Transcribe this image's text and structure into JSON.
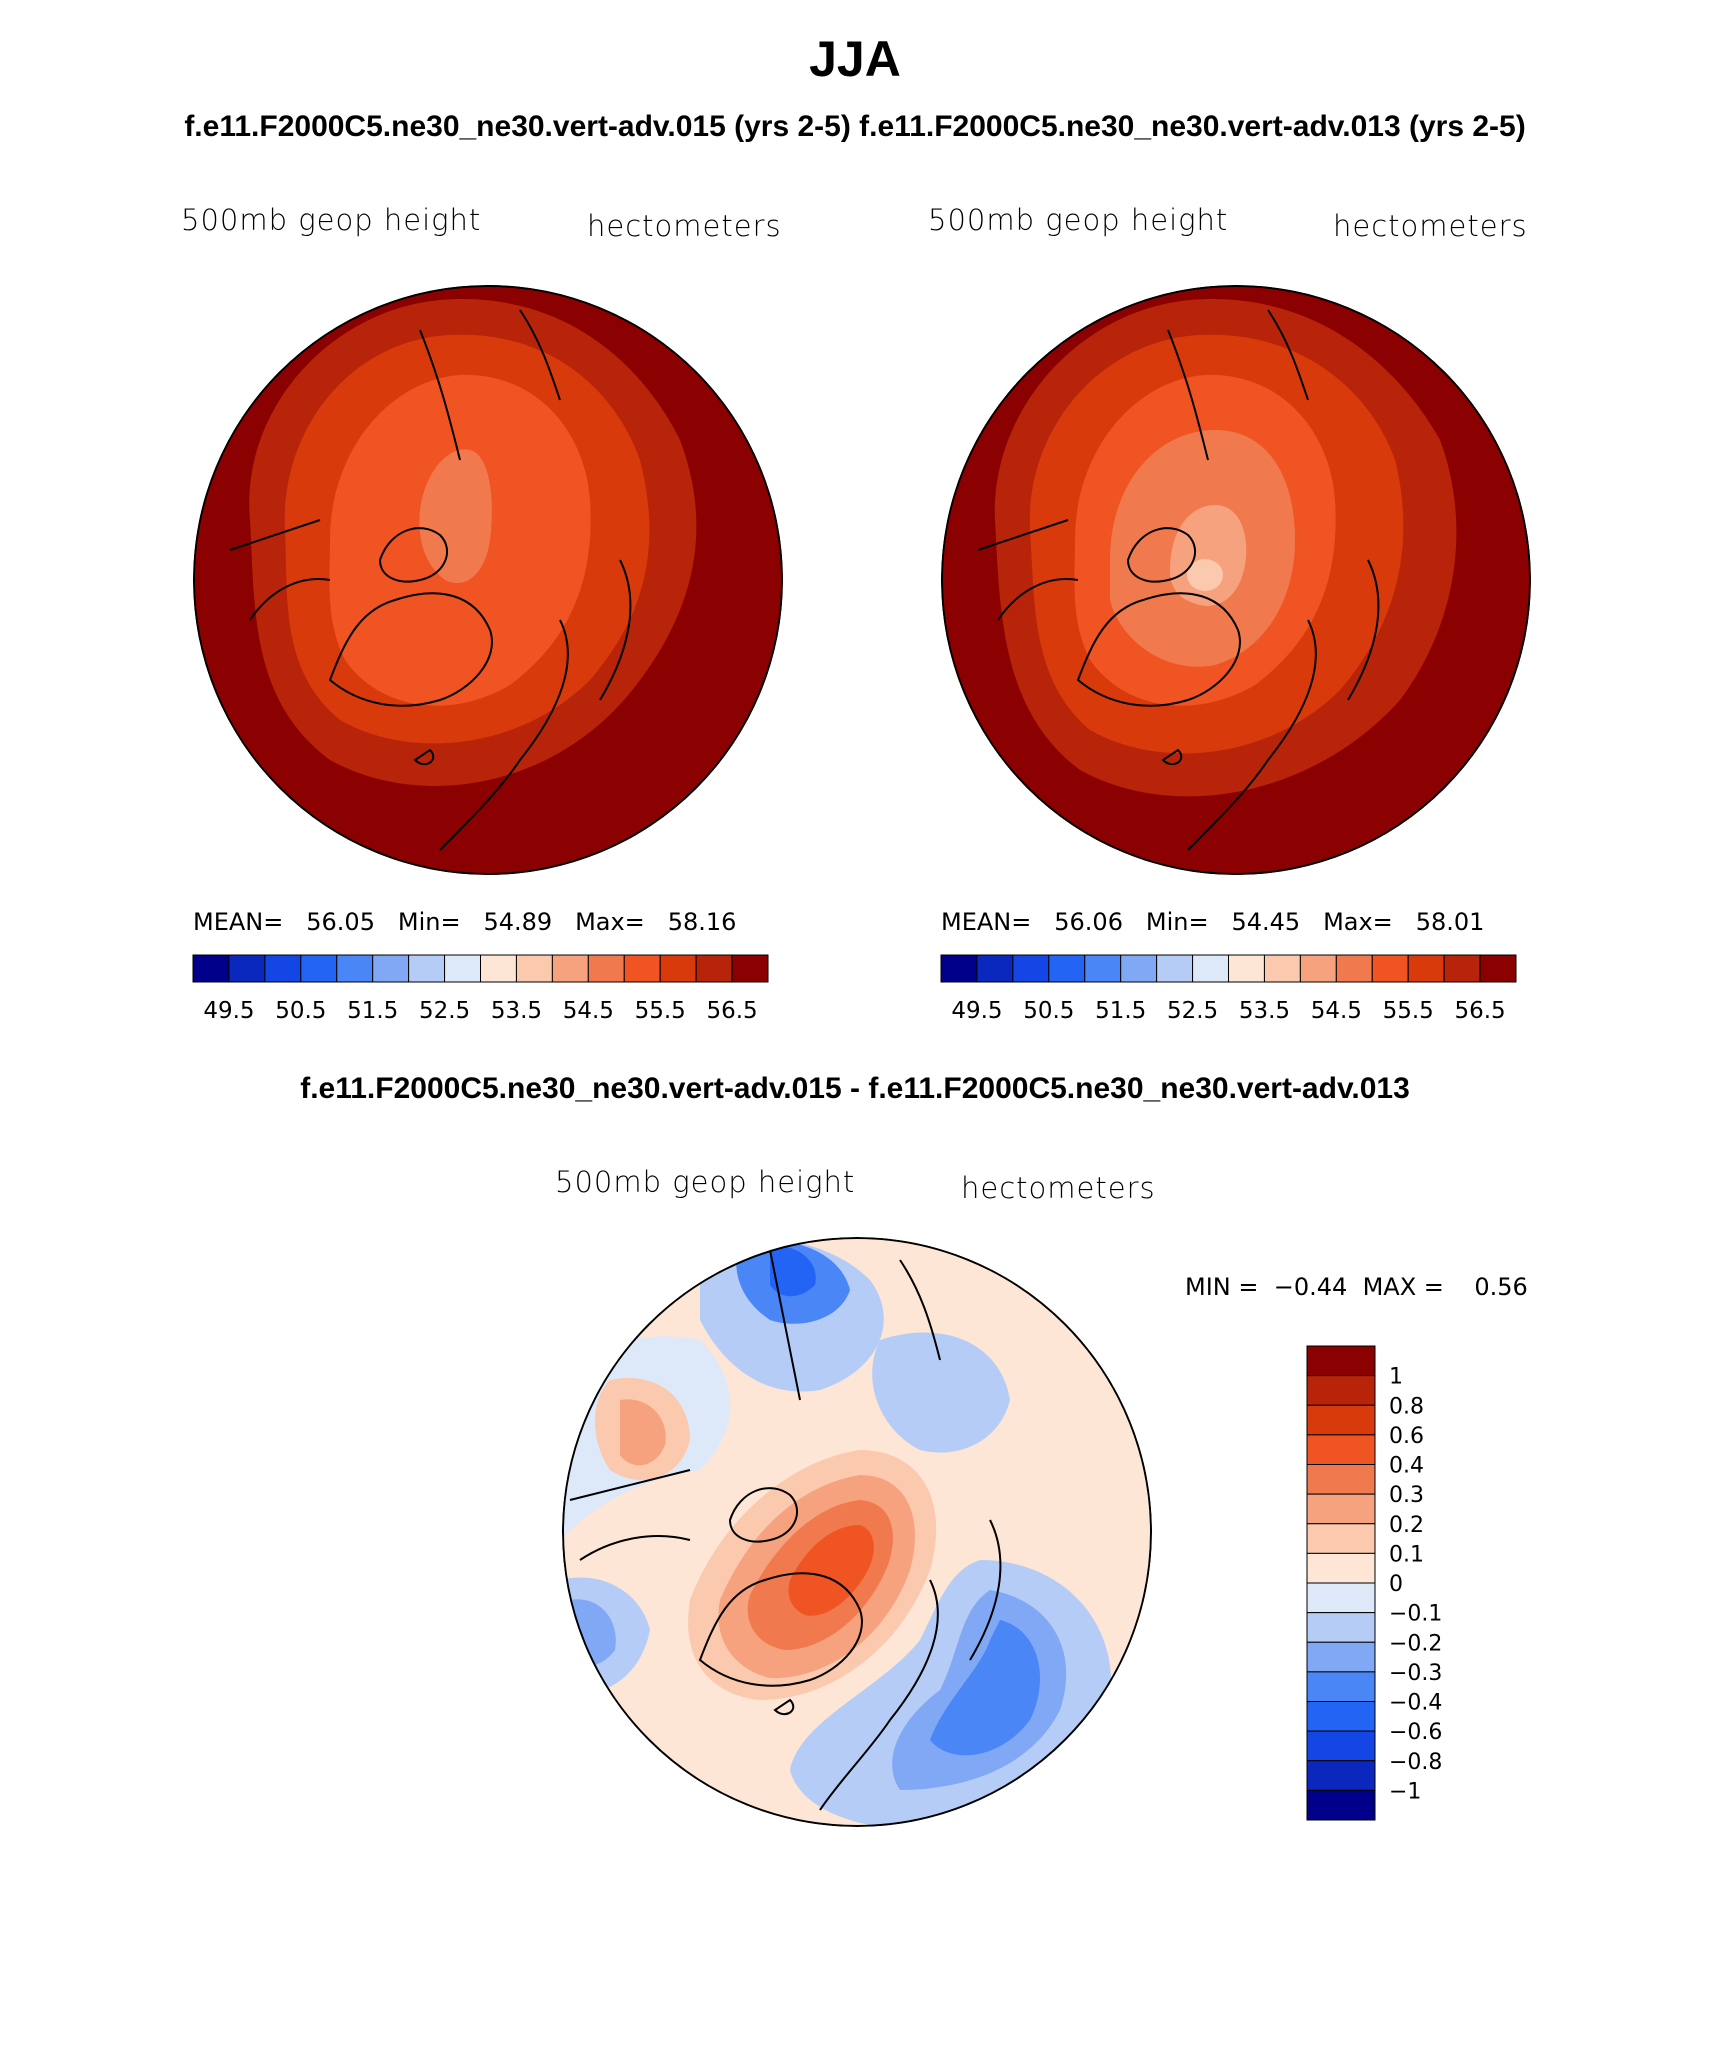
{
  "title": "JJA",
  "cases_line": "f.e11.F2000C5.ne30_ne30.vert-adv.015 (yrs 2-5) f.e11.F2000C5.ne30_ne30.vert-adv.013 (yrs 2-5)",
  "diff_title": "f.e11.F2000C5.ne30_ne30.vert-adv.015 - f.e11.F2000C5.ne30_ne30.vert-adv.013",
  "colors": {
    "abs_scale": [
      "#00008b",
      "#0a28be",
      "#1446e6",
      "#2364f5",
      "#4a86f5",
      "#80a8f5",
      "#b5ccf7",
      "#dde8f9",
      "#fde6d6",
      "#fbc9ae",
      "#f6a27e",
      "#f07a4e",
      "#f05423",
      "#d93a0c",
      "#b8240a",
      "#8b0000"
    ],
    "diff_scale": [
      "#00008b",
      "#0a28be",
      "#1446e6",
      "#2364f5",
      "#4a86f5",
      "#80a8f5",
      "#b5ccf7",
      "#dde8f9",
      "#fde6d6",
      "#fbc9ae",
      "#f6a27e",
      "#f07a4e",
      "#f05423",
      "#d93a0c",
      "#b8240a",
      "#8b0000"
    ]
  },
  "panels": [
    {
      "field_label": "500mb geop height",
      "units_label": "hectometers",
      "mean_label": "MEAN=",
      "mean_value": "56.05",
      "min_label": "Min=",
      "min_value": "54.89",
      "max_label": "Max=",
      "max_value": "58.16",
      "colorbar_ticks": [
        "49.5",
        "50.5",
        "51.5",
        "52.5",
        "53.5",
        "54.5",
        "55.5",
        "56.5"
      ]
    },
    {
      "field_label": "500mb geop height",
      "units_label": "hectometers",
      "mean_label": "MEAN=",
      "mean_value": "56.06",
      "min_label": "Min=",
      "min_value": "54.45",
      "max_label": "Max=",
      "max_value": "58.01",
      "colorbar_ticks": [
        "49.5",
        "50.5",
        "51.5",
        "52.5",
        "53.5",
        "54.5",
        "55.5",
        "56.5"
      ]
    }
  ],
  "diff_panel": {
    "field_label": "500mb geop height",
    "units_label": "hectometers",
    "min_label": "MIN =",
    "min_value": "−0.44",
    "max_label": "MAX =",
    "max_value": "0.56",
    "colorbar_ticks": [
      "1",
      "0.8",
      "0.6",
      "0.4",
      "0.3",
      "0.2",
      "0.1",
      "0",
      "−0.1",
      "−0.2",
      "−0.3",
      "−0.4",
      "−0.6",
      "−0.8",
      "−1"
    ]
  }
}
